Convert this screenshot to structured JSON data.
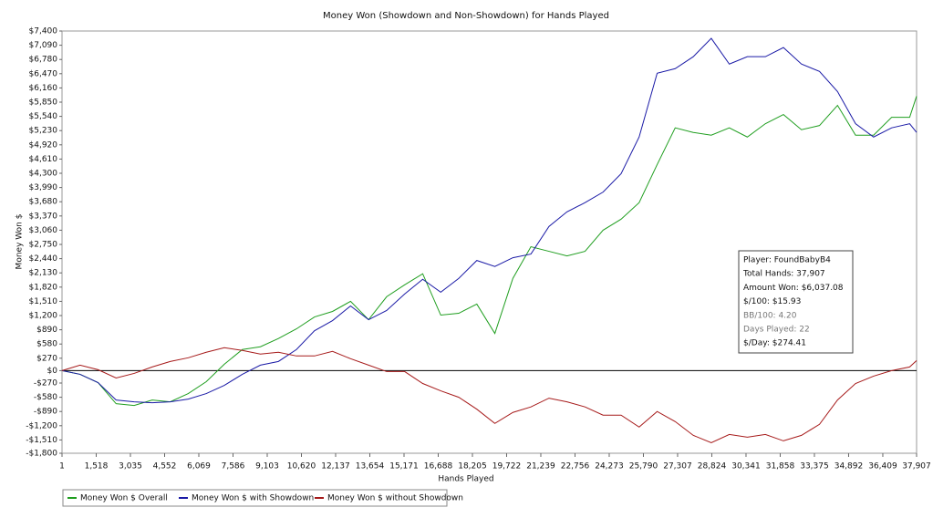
{
  "chart_data": {
    "type": "line",
    "title": "Money Won (Showdown and Non-Showdown) for Hands Played",
    "xlabel": "Hands Played",
    "ylabel": "Money Won $",
    "x": [
      1,
      800,
      1600,
      2400,
      3200,
      4000,
      4800,
      5600,
      6400,
      7200,
      8000,
      8800,
      9600,
      10400,
      11200,
      12000,
      12800,
      13600,
      14400,
      15200,
      16000,
      16800,
      17600,
      18400,
      19200,
      20000,
      20800,
      21600,
      22400,
      23200,
      24000,
      24800,
      25600,
      26400,
      27200,
      28000,
      28800,
      29600,
      30400,
      31200,
      32000,
      32800,
      33600,
      34400,
      35200,
      36000,
      36800,
      37600,
      37907
    ],
    "series": [
      {
        "name": "Money Won $ Overall",
        "color": "#1f9e1f",
        "values": [
          0,
          -80,
          -260,
          -720,
          -760,
          -640,
          -680,
          -500,
          -240,
          140,
          460,
          520,
          700,
          910,
          1170,
          1290,
          1510,
          1110,
          1610,
          1870,
          2110,
          1210,
          1250,
          1450,
          810,
          2010,
          2700,
          2600,
          2500,
          2600,
          3060,
          3300,
          3660,
          4490,
          5290,
          5190,
          5130,
          5290,
          5090,
          5380,
          5580,
          5250,
          5340,
          5780,
          5130,
          5130,
          5520,
          5520,
          5980
        ]
      },
      {
        "name": "Money Won $ with Showdown",
        "color": "#1a1aa6",
        "values": [
          0,
          -80,
          -260,
          -640,
          -680,
          -700,
          -680,
          -620,
          -500,
          -320,
          -80,
          120,
          200,
          460,
          870,
          1090,
          1410,
          1110,
          1310,
          1670,
          1990,
          1710,
          2010,
          2400,
          2270,
          2460,
          2540,
          3140,
          3460,
          3660,
          3890,
          4290,
          5090,
          6480,
          6580,
          6840,
          7240,
          6680,
          6840,
          6840,
          7040,
          6680,
          6520,
          6080,
          5380,
          5090,
          5290,
          5380,
          5190
        ]
      },
      {
        "name": "Money Won $ without Showdown",
        "color": "#a61a1a",
        "values": [
          0,
          120,
          20,
          -160,
          -60,
          80,
          200,
          280,
          400,
          500,
          440,
          360,
          400,
          320,
          320,
          420,
          260,
          120,
          -20,
          -20,
          -280,
          -440,
          -580,
          -840,
          -1150,
          -910,
          -790,
          -600,
          -680,
          -790,
          -970,
          -970,
          -1230,
          -890,
          -1110,
          -1410,
          -1570,
          -1390,
          -1450,
          -1390,
          -1530,
          -1410,
          -1170,
          -640,
          -280,
          -120,
          0,
          80,
          220
        ]
      }
    ],
    "xlim": [
      1,
      37907
    ],
    "xticks": [
      1,
      {
        "value": 1518,
        "label": "1,518"
      },
      {
        "value": 3035,
        "label": "3,035"
      },
      {
        "value": 4552,
        "label": "4,552"
      },
      {
        "value": 6069,
        "label": "6,069"
      },
      {
        "value": 7586,
        "label": "7,586"
      },
      {
        "value": 9103,
        "label": "9,103"
      },
      {
        "value": 10620,
        "label": "10,620"
      },
      {
        "value": 12137,
        "label": "12,137"
      },
      {
        "value": 13654,
        "label": "13,654"
      },
      {
        "value": 15171,
        "label": "15,171"
      },
      {
        "value": 16688,
        "label": "16,688"
      },
      {
        "value": 18205,
        "label": "18,205"
      },
      {
        "value": 19722,
        "label": "19,722"
      },
      {
        "value": 21239,
        "label": "21,239"
      },
      {
        "value": 22756,
        "label": "22,756"
      },
      {
        "value": 24273,
        "label": "24,273"
      },
      {
        "value": 25790,
        "label": "25,790"
      },
      {
        "value": 27307,
        "label": "27,307"
      },
      {
        "value": 28824,
        "label": "28,824"
      },
      {
        "value": 30341,
        "label": "30,341"
      },
      {
        "value": 31858,
        "label": "31,858"
      },
      {
        "value": 33375,
        "label": "33,375"
      },
      {
        "value": 34892,
        "label": "34,892"
      },
      {
        "value": 36409,
        "label": "36,409"
      },
      {
        "value": 37907,
        "label": "37,907"
      }
    ],
    "ylim": [
      -1800,
      7400
    ],
    "yticks": [
      {
        "value": -1800,
        "label": "-$1,800"
      },
      {
        "value": -1510,
        "label": "-$1,510"
      },
      {
        "value": -1200,
        "label": "-$1,200"
      },
      {
        "value": -890,
        "label": "-$890"
      },
      {
        "value": -580,
        "label": "-$580"
      },
      {
        "value": -270,
        "label": "-$270"
      },
      {
        "value": 0,
        "label": "$0"
      },
      {
        "value": 270,
        "label": "$270"
      },
      {
        "value": 580,
        "label": "$580"
      },
      {
        "value": 890,
        "label": "$890"
      },
      {
        "value": 1200,
        "label": "$1,200"
      },
      {
        "value": 1510,
        "label": "$1,510"
      },
      {
        "value": 1820,
        "label": "$1,820"
      },
      {
        "value": 2130,
        "label": "$2,130"
      },
      {
        "value": 2440,
        "label": "$2,440"
      },
      {
        "value": 2750,
        "label": "$2,750"
      },
      {
        "value": 3060,
        "label": "$3,060"
      },
      {
        "value": 3370,
        "label": "$3,370"
      },
      {
        "value": 3680,
        "label": "$3,680"
      },
      {
        "value": 3990,
        "label": "$3,990"
      },
      {
        "value": 4300,
        "label": "$4,300"
      },
      {
        "value": 4610,
        "label": "$4,610"
      },
      {
        "value": 4920,
        "label": "$4,920"
      },
      {
        "value": 5230,
        "label": "$5,230"
      },
      {
        "value": 5540,
        "label": "$5,540"
      },
      {
        "value": 5850,
        "label": "$5,850"
      },
      {
        "value": 6160,
        "label": "$6,160"
      },
      {
        "value": 6470,
        "label": "$6,470"
      },
      {
        "value": 6780,
        "label": "$6,780"
      },
      {
        "value": 7090,
        "label": "$7,090"
      },
      {
        "value": 7400,
        "label": "$7,400"
      }
    ],
    "grid": false,
    "info_box": [
      "Player: FoundBabyB4",
      "Total Hands: 37,907",
      "Amount Won: $6,037.08",
      "$/100: $15.93",
      "BB/100: 4.20",
      "Days Played: 22",
      "$/Day: $274.41"
    ]
  }
}
